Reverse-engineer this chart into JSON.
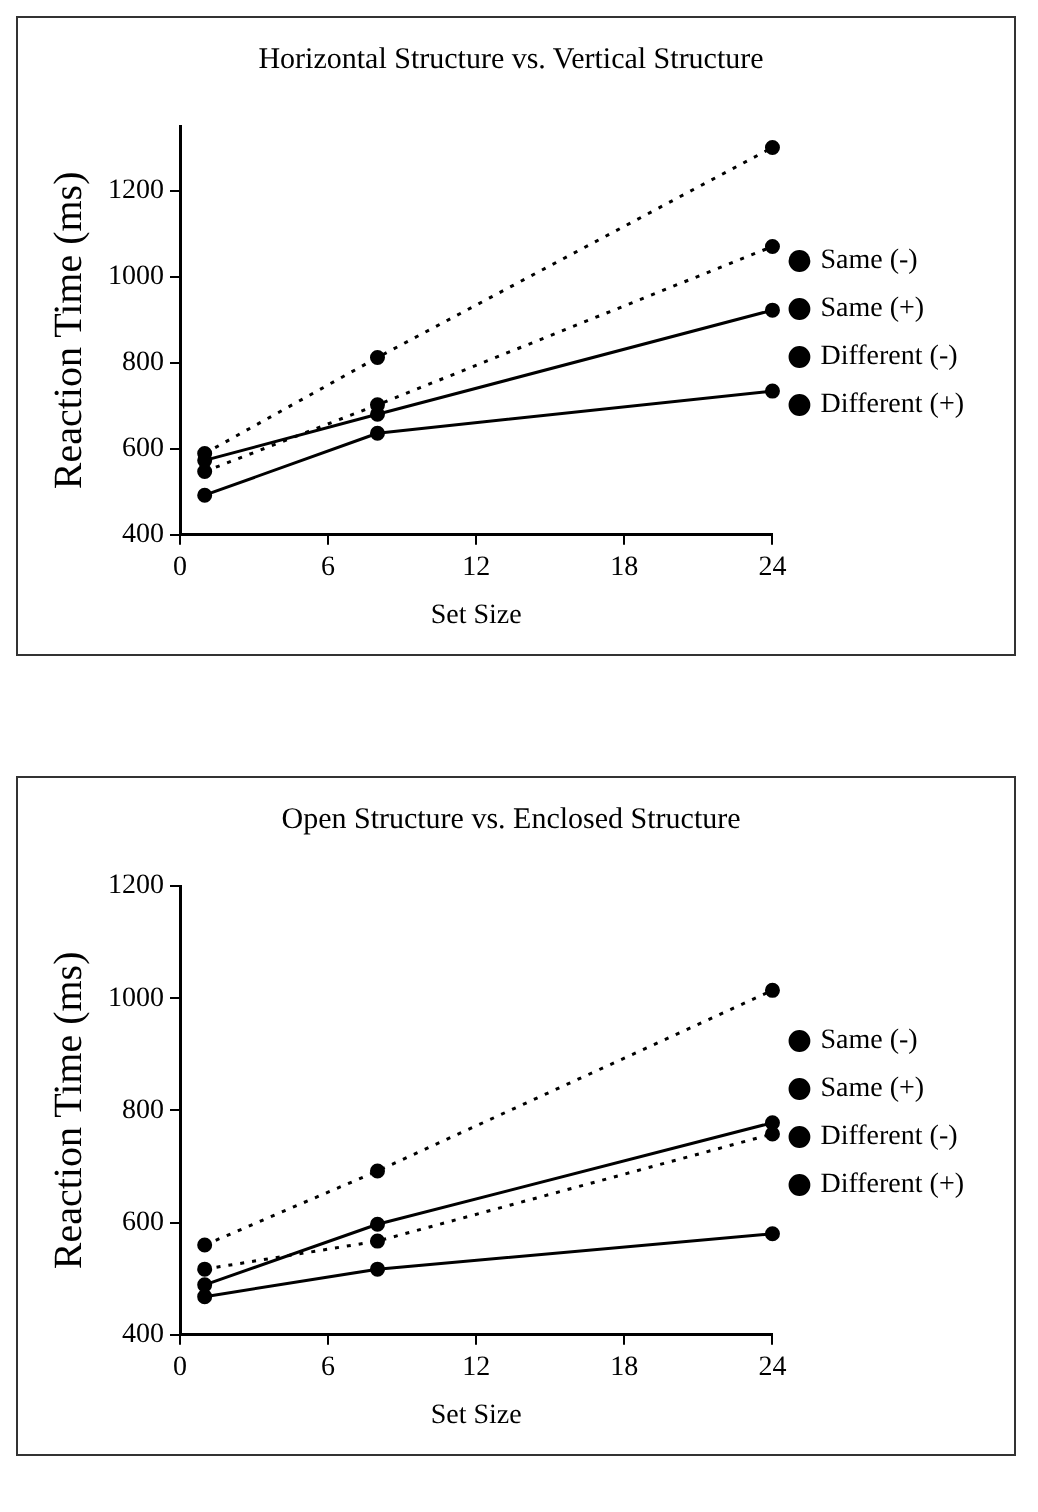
{
  "chart_data": [
    {
      "type": "line",
      "title": "Horizontal Structure vs. Vertical Structure",
      "xlabel": "Set Size",
      "ylabel": "Reaction Time (ms)",
      "x": [
        1,
        8,
        24
      ],
      "xlim": [
        0,
        24
      ],
      "xticks": [
        0,
        6,
        12,
        18,
        24
      ],
      "ylim": [
        400,
        1350
      ],
      "yticks": [
        400,
        600,
        800,
        1000,
        1200
      ],
      "grid": false,
      "legend": "right",
      "marker": "circle",
      "series": [
        {
          "name": "Same (-)",
          "color": "#000000",
          "line_style": "dotted",
          "values": [
            589,
            812,
            1300
          ]
        },
        {
          "name": "Same (+)",
          "color": "#000000",
          "line_style": "solid",
          "values": [
            573,
            680,
            922
          ]
        },
        {
          "name": "Different (-)",
          "color": "#000000",
          "line_style": "dotted",
          "values": [
            547,
            702,
            1070
          ]
        },
        {
          "name": "Different (+)",
          "color": "#000000",
          "line_style": "solid",
          "values": [
            492,
            636,
            734
          ]
        }
      ]
    },
    {
      "type": "line",
      "title": "Open Structure vs. Enclosed Structure",
      "xlabel": "Set Size",
      "ylabel": "Reaction Time (ms)",
      "x": [
        1,
        8,
        24
      ],
      "xlim": [
        0,
        24
      ],
      "xticks": [
        0,
        6,
        12,
        18,
        24
      ],
      "ylim": [
        400,
        1200
      ],
      "yticks": [
        400,
        600,
        800,
        1000,
        1200
      ],
      "grid": false,
      "legend": "right",
      "marker": "circle",
      "series": [
        {
          "name": "Same (-)",
          "color": "#000000",
          "line_style": "dotted",
          "values": [
            560,
            692,
            1014
          ]
        },
        {
          "name": "Same (+)",
          "color": "#000000",
          "line_style": "solid",
          "values": [
            489,
            597,
            778
          ]
        },
        {
          "name": "Different (-)",
          "color": "#000000",
          "line_style": "dotted",
          "values": [
            517,
            567,
            758
          ]
        },
        {
          "name": "Different (+)",
          "color": "#000000",
          "line_style": "solid",
          "values": [
            468,
            517,
            580
          ]
        }
      ]
    }
  ]
}
